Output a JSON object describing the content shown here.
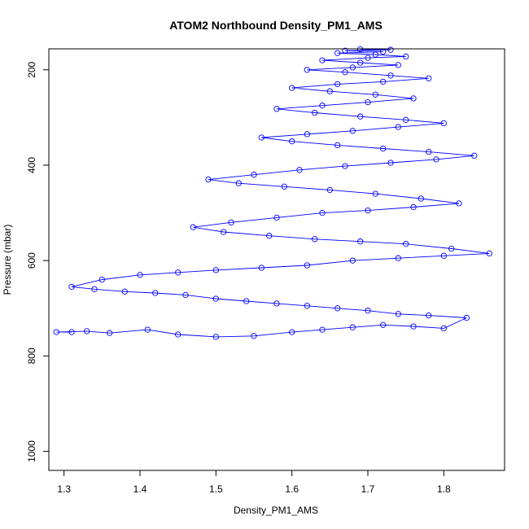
{
  "chart_data": {
    "type": "line",
    "title": "ATOM2 Northbound Density_PM1_AMS",
    "xlabel": "Density_PM1_AMS",
    "ylabel": "Pressure (mbar)",
    "xlim": [
      1.28,
      1.88
    ],
    "ylim": [
      1040,
      156
    ],
    "y_reversed": true,
    "x_ticks": [
      1.3,
      1.4,
      1.5,
      1.6,
      1.7,
      1.8
    ],
    "y_ticks": [
      200,
      400,
      600,
      800,
      1000
    ],
    "grid": false,
    "markers": "open-circle",
    "color": "#0000ff",
    "series": [
      {
        "x": [
          1.31,
          1.29,
          1.33,
          1.36,
          1.41,
          1.45,
          1.5,
          1.55,
          1.6,
          1.64,
          1.68,
          1.72,
          1.76,
          1.8,
          1.83,
          1.78,
          1.74,
          1.7,
          1.66,
          1.62,
          1.58,
          1.54,
          1.5,
          1.46,
          1.42,
          1.38,
          1.34,
          1.31,
          1.35,
          1.4,
          1.45,
          1.5,
          1.56,
          1.62,
          1.68,
          1.74,
          1.8,
          1.86,
          1.81,
          1.75,
          1.69,
          1.63,
          1.57,
          1.51,
          1.47,
          1.52,
          1.58,
          1.64,
          1.7,
          1.76,
          1.82,
          1.77,
          1.71,
          1.65,
          1.59,
          1.53,
          1.49,
          1.55,
          1.61,
          1.67,
          1.73,
          1.79,
          1.84,
          1.78,
          1.72,
          1.66,
          1.6,
          1.56,
          1.62,
          1.68,
          1.74,
          1.8,
          1.75,
          1.69,
          1.63,
          1.58,
          1.64,
          1.7,
          1.76,
          1.71,
          1.65,
          1.6,
          1.66,
          1.72,
          1.78,
          1.73,
          1.67,
          1.62,
          1.68,
          1.74,
          1.69,
          1.64,
          1.7,
          1.75,
          1.71,
          1.66,
          1.72,
          1.67,
          1.73,
          1.69
        ],
        "y": [
          750,
          750,
          748,
          752,
          745,
          755,
          760,
          758,
          750,
          745,
          740,
          735,
          738,
          742,
          720,
          715,
          712,
          705,
          700,
          695,
          690,
          685,
          680,
          672,
          668,
          665,
          660,
          655,
          640,
          630,
          625,
          620,
          615,
          610,
          600,
          595,
          590,
          585,
          575,
          565,
          560,
          555,
          548,
          540,
          530,
          520,
          510,
          500,
          495,
          488,
          480,
          470,
          460,
          452,
          445,
          438,
          430,
          420,
          410,
          402,
          395,
          388,
          380,
          372,
          365,
          358,
          350,
          342,
          335,
          328,
          320,
          312,
          305,
          298,
          290,
          282,
          275,
          268,
          260,
          252,
          245,
          238,
          230,
          225,
          218,
          212,
          205,
          200,
          195,
          190,
          185,
          180,
          175,
          172,
          168,
          165,
          162,
          160,
          158,
          157
        ]
      }
    ]
  }
}
